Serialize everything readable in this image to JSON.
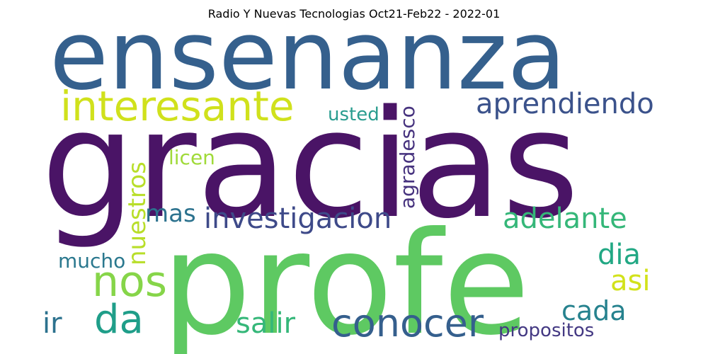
{
  "title": "Radio Y Nuevas Tecnologias Oct21-Feb22 - 2022-01",
  "words": [
    {
      "text": "gracias",
      "color": "#4a1466"
    },
    {
      "text": "ensenanza",
      "color": "#35608d"
    },
    {
      "text": "profe",
      "color": "#5ec962"
    },
    {
      "text": "interesante",
      "color": "#d0e11c"
    },
    {
      "text": "aprendiendo",
      "color": "#3b528b"
    },
    {
      "text": "usted",
      "color": "#2a9d8f"
    },
    {
      "text": "agradesco",
      "color": "#46327e"
    },
    {
      "text": "nuestros",
      "color": "#b8de29"
    },
    {
      "text": "licen",
      "color": "#a0da39"
    },
    {
      "text": "mas",
      "color": "#2c728e"
    },
    {
      "text": "investigacion",
      "color": "#3e4a89"
    },
    {
      "text": "adelante",
      "color": "#35b779"
    },
    {
      "text": "nos",
      "color": "#86d549"
    },
    {
      "text": "mucho",
      "color": "#2a788e"
    },
    {
      "text": "dia",
      "color": "#22a884"
    },
    {
      "text": "asi",
      "color": "#d2e21b"
    },
    {
      "text": "da",
      "color": "#1f9e89"
    },
    {
      "text": "ir",
      "color": "#2c728e"
    },
    {
      "text": "conocer",
      "color": "#355f8d"
    },
    {
      "text": "cada",
      "color": "#26828e"
    },
    {
      "text": "salir",
      "color": "#35b779"
    },
    {
      "text": "propositos",
      "color": "#443983"
    }
  ]
}
